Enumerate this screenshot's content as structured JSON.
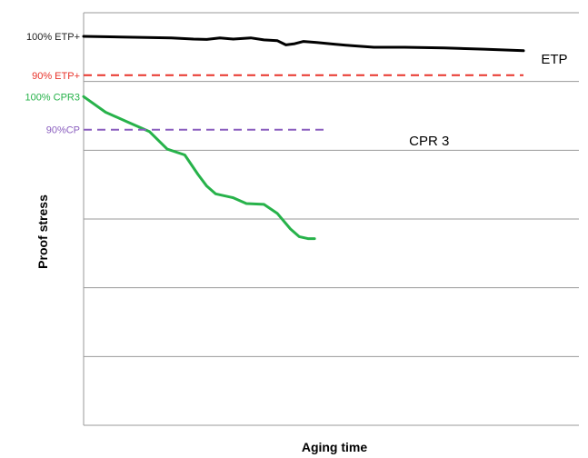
{
  "chart_data": {
    "type": "line",
    "title": "",
    "xlabel": "Aging time",
    "ylabel": "Proof stress",
    "xlim": [
      0,
      100
    ],
    "ylim": [
      0,
      100
    ],
    "grid": true,
    "y_tick_count": 7,
    "reference_labels": [
      {
        "text": "100% ETP+",
        "y": 100,
        "color": "#222222"
      },
      {
        "text": "90% ETP+",
        "y": 90,
        "color": "#e8332a"
      },
      {
        "text": "100% CPR3",
        "y": 84.5,
        "color": "#27b24a"
      },
      {
        "text": "90%CP",
        "y": 76,
        "color": "#8b5fbf"
      }
    ],
    "series": [
      {
        "name": "ETP",
        "color": "#000000",
        "style": "solid",
        "points": [
          [
            0,
            100
          ],
          [
            10,
            99.8
          ],
          [
            20,
            99.6
          ],
          [
            25,
            99.3
          ],
          [
            28,
            99.2
          ],
          [
            31,
            99.6
          ],
          [
            34,
            99.3
          ],
          [
            38,
            99.6
          ],
          [
            41,
            99.1
          ],
          [
            44,
            98.9
          ],
          [
            46,
            97.8
          ],
          [
            48,
            98.1
          ],
          [
            50,
            98.7
          ],
          [
            53,
            98.4
          ],
          [
            57,
            98.0
          ],
          [
            61,
            97.6
          ],
          [
            66,
            97.2
          ],
          [
            73,
            97.2
          ],
          [
            82,
            97.0
          ],
          [
            91,
            96.7
          ],
          [
            100,
            96.3
          ]
        ]
      },
      {
        "name": "CPR 3",
        "color": "#27b24a",
        "style": "solid",
        "points": [
          [
            0,
            84.5
          ],
          [
            5,
            80.5
          ],
          [
            10,
            78.0
          ],
          [
            15,
            75.5
          ],
          [
            19,
            71.0
          ],
          [
            23,
            69.5
          ],
          [
            26,
            64.5
          ],
          [
            28,
            61.5
          ],
          [
            30,
            59.5
          ],
          [
            34,
            58.5
          ],
          [
            37,
            57.0
          ],
          [
            41,
            56.8
          ],
          [
            44,
            54.5
          ],
          [
            47,
            50.5
          ],
          [
            49,
            48.5
          ],
          [
            51,
            48.0
          ],
          [
            52.5,
            48.0
          ]
        ]
      },
      {
        "name": "90% ETP+",
        "color": "#e8332a",
        "style": "dashed",
        "points": [
          [
            0,
            90
          ],
          [
            100,
            90
          ]
        ]
      },
      {
        "name": "90%CP",
        "color": "#8b5fbf",
        "style": "dashed",
        "points": [
          [
            0,
            76
          ],
          [
            55,
            76
          ]
        ]
      }
    ],
    "series_labels": [
      {
        "text": "ETP",
        "x": 104,
        "y": 93
      },
      {
        "text": "CPR 3",
        "x": 74,
        "y": 72
      }
    ]
  }
}
